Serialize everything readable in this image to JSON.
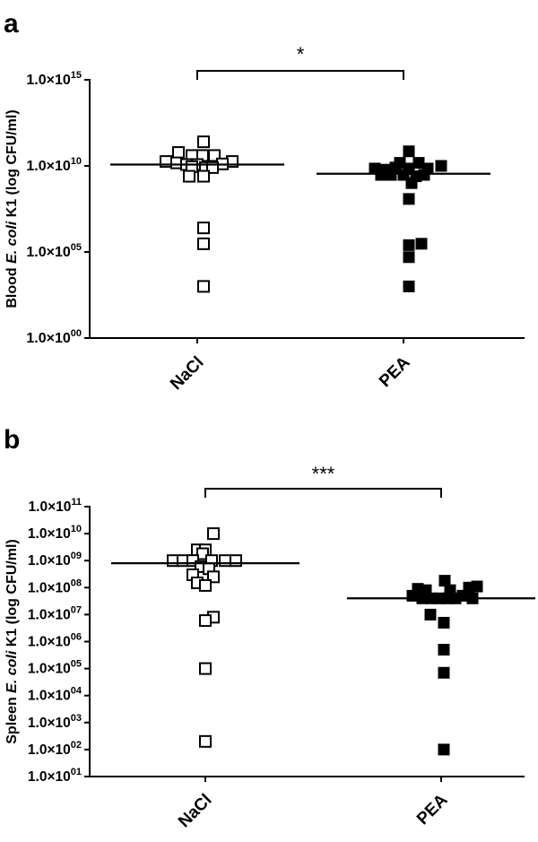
{
  "chart_data": [
    {
      "panel": "a",
      "type": "scatter",
      "ylabel_parts": [
        "Blood ",
        "E. coli",
        " K1 (log CFU/ml)"
      ],
      "y_scale": "log10",
      "ylim": [
        1,
        1000000000000000.0
      ],
      "yticks": [
        {
          "value": 1,
          "base": "1.0×10",
          "exp": "00"
        },
        {
          "value": 100000.0,
          "base": "1.0×10",
          "exp": "05"
        },
        {
          "value": 10000000000.0,
          "base": "1.0×10",
          "exp": "10"
        },
        {
          "value": 1000000000000000.0,
          "base": "1.0×10",
          "exp": "15"
        }
      ],
      "categories": [
        "NaCl",
        "PEA"
      ],
      "significance": "*",
      "series": [
        {
          "category": "NaCl",
          "marker": "open-square",
          "median": 12000000000.0,
          "points": [
            {
              "j": 0.35,
              "y": 250000000000.0
            },
            {
              "j": -1.05,
              "y": 60000000000.0
            },
            {
              "j": -0.3,
              "y": 40000000000.0
            },
            {
              "j": 0.3,
              "y": 40000000000.0
            },
            {
              "j": 0.95,
              "y": 40000000000.0
            },
            {
              "j": -1.75,
              "y": 18000000000.0
            },
            {
              "j": -1.15,
              "y": 15000000000.0
            },
            {
              "j": 1.95,
              "y": 18000000000.0
            },
            {
              "j": 1.4,
              "y": 13000000000.0
            },
            {
              "j": -0.6,
              "y": 12000000000.0
            },
            {
              "j": 0.0,
              "y": 12000000000.0
            },
            {
              "j": -0.3,
              "y": 9000000000.0
            },
            {
              "j": 0.45,
              "y": 8000000000.0
            },
            {
              "j": 0.85,
              "y": 8000000000.0
            },
            {
              "j": -0.45,
              "y": 2500000000.0
            },
            {
              "j": 0.35,
              "y": 2500000000.0
            },
            {
              "j": 0.35,
              "y": 2500000.0
            },
            {
              "j": 0.35,
              "y": 300000.0
            },
            {
              "j": 0.35,
              "y": 1000.0
            }
          ]
        },
        {
          "category": "PEA",
          "marker": "filled-square",
          "median": 3500000000.0,
          "points": [
            {
              "j": 0.3,
              "y": 70000000000.0
            },
            {
              "j": -0.2,
              "y": 15000000000.0
            },
            {
              "j": 0.85,
              "y": 15000000000.0
            },
            {
              "j": -1.6,
              "y": 7000000000.0
            },
            {
              "j": -0.95,
              "y": 6000000000.0
            },
            {
              "j": -0.45,
              "y": 8000000000.0
            },
            {
              "j": 0.3,
              "y": 7000000000.0
            },
            {
              "j": 1.35,
              "y": 7000000000.0
            },
            {
              "j": 2.1,
              "y": 10000000000.0
            },
            {
              "j": -1.25,
              "y": 3000000000.0
            },
            {
              "j": -0.7,
              "y": 3000000000.0
            },
            {
              "j": 0.0,
              "y": 3000000000.0
            },
            {
              "j": 0.7,
              "y": 2500000000.0
            },
            {
              "j": 1.15,
              "y": 3000000000.0
            },
            {
              "j": 0.45,
              "y": 1000000000.0
            },
            {
              "j": 0.3,
              "y": 120000000.0
            },
            {
              "j": 0.3,
              "y": 250000.0
            },
            {
              "j": 1.0,
              "y": 300000.0
            },
            {
              "j": 0.3,
              "y": 50000.0
            },
            {
              "j": 0.3,
              "y": 1000.0
            }
          ]
        }
      ]
    },
    {
      "panel": "b",
      "type": "scatter",
      "ylabel_parts": [
        "Spleen ",
        "E. coli",
        " K1 (log CFU/ml)"
      ],
      "y_scale": "log10",
      "ylim": [
        10,
        100000000000.0
      ],
      "yticks": [
        {
          "value": 10.0,
          "base": "1.0×10",
          "exp": "01"
        },
        {
          "value": 100.0,
          "base": "1.0×10",
          "exp": "02"
        },
        {
          "value": 1000.0,
          "base": "1.0×10",
          "exp": "03"
        },
        {
          "value": 10000.0,
          "base": "1.0×10",
          "exp": "04"
        },
        {
          "value": 100000.0,
          "base": "1.0×10",
          "exp": "05"
        },
        {
          "value": 1000000.0,
          "base": "1.0×10",
          "exp": "06"
        },
        {
          "value": 10000000.0,
          "base": "1.0×10",
          "exp": "07"
        },
        {
          "value": 100000000.0,
          "base": "1.0×10",
          "exp": "08"
        },
        {
          "value": 1000000000.0,
          "base": "1.0×10",
          "exp": "09"
        },
        {
          "value": 10000000000.0,
          "base": "1.0×10",
          "exp": "10"
        },
        {
          "value": 100000000000.0,
          "base": "1.0×10",
          "exp": "11"
        }
      ],
      "categories": [
        "NaCl",
        "PEA"
      ],
      "significance": "***",
      "series": [
        {
          "category": "NaCl",
          "marker": "open-square",
          "median": 800000000.0,
          "points": [
            {
              "j": 0.45,
              "y": 10000000000.0
            },
            {
              "j": -0.45,
              "y": 2500000000.0
            },
            {
              "j": 0.0,
              "y": 2500000000.0
            },
            {
              "j": -0.15,
              "y": 1800000000.0
            },
            {
              "j": -1.8,
              "y": 1000000000.0
            },
            {
              "j": -1.25,
              "y": 1000000000.0
            },
            {
              "j": -0.7,
              "y": 1000000000.0
            },
            {
              "j": 0.35,
              "y": 1000000000.0
            },
            {
              "j": 1.1,
              "y": 1000000000.0
            },
            {
              "j": 1.7,
              "y": 1000000000.0
            },
            {
              "j": -0.25,
              "y": 600000000.0
            },
            {
              "j": 0.2,
              "y": 500000000.0
            },
            {
              "j": -0.7,
              "y": 300000000.0
            },
            {
              "j": 0.45,
              "y": 250000000.0
            },
            {
              "j": -0.45,
              "y": 150000000.0
            },
            {
              "j": 0.0,
              "y": 120000000.0
            },
            {
              "j": 0.45,
              "y": 8000000.0
            },
            {
              "j": 0.0,
              "y": 6000000.0
            },
            {
              "j": 0.0,
              "y": 100000.0
            },
            {
              "j": 0.0,
              "y": 200.0
            }
          ]
        },
        {
          "category": "PEA",
          "marker": "filled-square",
          "median": 40000000.0,
          "points": [
            {
              "j": 0.2,
              "y": 180000000.0
            },
            {
              "j": -1.3,
              "y": 90000000.0
            },
            {
              "j": -0.85,
              "y": 80000000.0
            },
            {
              "j": 0.5,
              "y": 80000000.0
            },
            {
              "j": 1.55,
              "y": 100000000.0
            },
            {
              "j": 2.0,
              "y": 110000000.0
            },
            {
              "j": -1.6,
              "y": 50000000.0
            },
            {
              "j": -1.05,
              "y": 40000000.0
            },
            {
              "j": -0.55,
              "y": 40000000.0
            },
            {
              "j": -0.1,
              "y": 40000000.0
            },
            {
              "j": 0.35,
              "y": 40000000.0
            },
            {
              "j": 0.8,
              "y": 40000000.0
            },
            {
              "j": 1.2,
              "y": 50000000.0
            },
            {
              "j": 1.75,
              "y": 40000000.0
            },
            {
              "j": -0.6,
              "y": 10000000.0
            },
            {
              "j": 0.15,
              "y": 5000000.0
            },
            {
              "j": 0.15,
              "y": 500000.0
            },
            {
              "j": 0.15,
              "y": 70000.0
            },
            {
              "j": 0.15,
              "y": 100.0
            }
          ]
        }
      ]
    }
  ]
}
